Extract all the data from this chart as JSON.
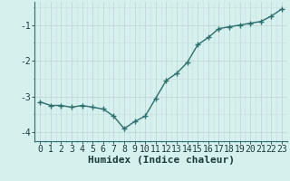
{
  "x": [
    0,
    1,
    2,
    3,
    4,
    5,
    6,
    7,
    8,
    9,
    10,
    11,
    12,
    13,
    14,
    15,
    16,
    17,
    18,
    19,
    20,
    21,
    22,
    23
  ],
  "y": [
    -3.15,
    -3.25,
    -3.25,
    -3.3,
    -3.25,
    -3.3,
    -3.35,
    -3.55,
    -3.9,
    -3.7,
    -3.55,
    -3.05,
    -2.55,
    -2.35,
    -2.05,
    -1.55,
    -1.35,
    -1.1,
    -1.05,
    -1.0,
    -0.95,
    -0.9,
    -0.75,
    -0.55
  ],
  "line_color": "#2d6e6e",
  "marker": "+",
  "marker_size": 4,
  "bg_color": "#d6f0ee",
  "grid_color": "#c0d8d8",
  "xlabel": "Humidex (Indice chaleur)",
  "xlabel_fontsize": 8,
  "ytick_labels": [
    "",
    "-1",
    "-2",
    "-3",
    "-4"
  ],
  "yticks": [
    -0.5,
    -1,
    -2,
    -3,
    -4
  ],
  "xtick_labels": [
    "0",
    "1",
    "2",
    "3",
    "4",
    "5",
    "6",
    "7",
    "8",
    "9",
    "10",
    "11",
    "12",
    "13",
    "14",
    "15",
    "16",
    "17",
    "18",
    "19",
    "20",
    "21",
    "22",
    "23"
  ],
  "ylim": [
    -4.25,
    -0.35
  ],
  "xlim": [
    -0.5,
    23.5
  ],
  "tick_fontsize": 7,
  "line_width": 1.0
}
